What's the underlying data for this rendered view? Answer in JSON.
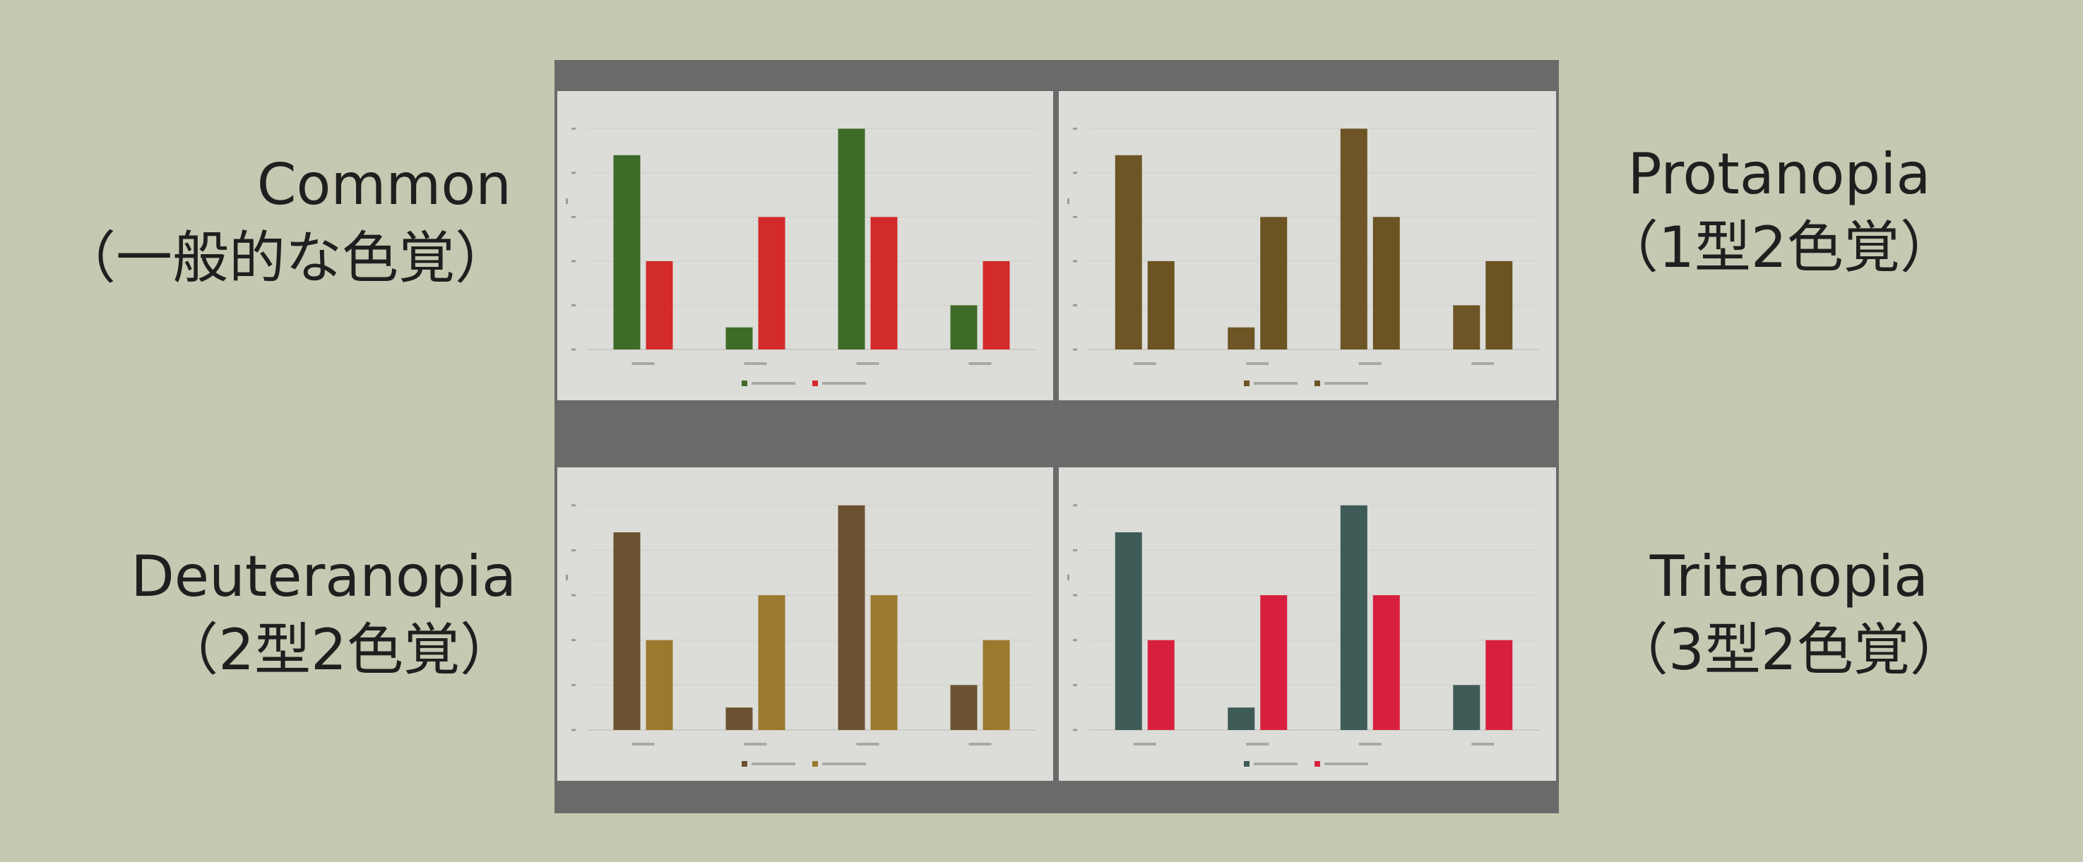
{
  "labels": {
    "common": {
      "name": "Common",
      "sub": "（一般的な色覚）"
    },
    "protanopia": {
      "name": "Protanopia",
      "sub": "（1型2色覚）"
    },
    "deuteranopia": {
      "name": "Deuteranopia",
      "sub": "（2型2色覚）"
    },
    "tritanopia": {
      "name": "Tritanopia",
      "sub": "（3型2色覚）"
    }
  },
  "chart_data": [
    {
      "type": "bar",
      "panel": "common",
      "categories": [
        "",
        "",
        "",
        ""
      ],
      "series": [
        {
          "values": [
            4.4,
            0.5,
            5.0,
            1.0
          ],
          "color": "#3f6b28"
        },
        {
          "values": [
            2.0,
            3.0,
            3.0,
            2.0
          ],
          "color": "#d32a2a"
        }
      ],
      "ylim": [
        0,
        5.5
      ],
      "grid": true,
      "legend": "bottom"
    },
    {
      "type": "bar",
      "panel": "protanopia",
      "categories": [
        "",
        "",
        "",
        ""
      ],
      "series": [
        {
          "values": [
            4.4,
            0.5,
            5.0,
            1.0
          ],
          "color": "#6e5526"
        },
        {
          "values": [
            2.0,
            3.0,
            3.0,
            2.0
          ],
          "color": "#6b5322"
        }
      ],
      "ylim": [
        0,
        5.5
      ],
      "grid": true,
      "legend": "bottom"
    },
    {
      "type": "bar",
      "panel": "deuteranopia",
      "categories": [
        "",
        "",
        "",
        ""
      ],
      "series": [
        {
          "values": [
            4.4,
            0.5,
            5.0,
            1.0
          ],
          "color": "#6a5231"
        },
        {
          "values": [
            2.0,
            3.0,
            3.0,
            2.0
          ],
          "color": "#9a7a2e"
        }
      ],
      "ylim": [
        0,
        5.5
      ],
      "grid": true,
      "legend": "bottom"
    },
    {
      "type": "bar",
      "panel": "tritanopia",
      "categories": [
        "",
        "",
        "",
        ""
      ],
      "series": [
        {
          "values": [
            4.4,
            0.5,
            5.0,
            1.0
          ],
          "color": "#3f5b57"
        },
        {
          "values": [
            2.0,
            3.0,
            3.0,
            2.0
          ],
          "color": "#d8203e"
        }
      ],
      "ylim": [
        0,
        5.5
      ],
      "grid": true,
      "legend": "bottom"
    }
  ]
}
